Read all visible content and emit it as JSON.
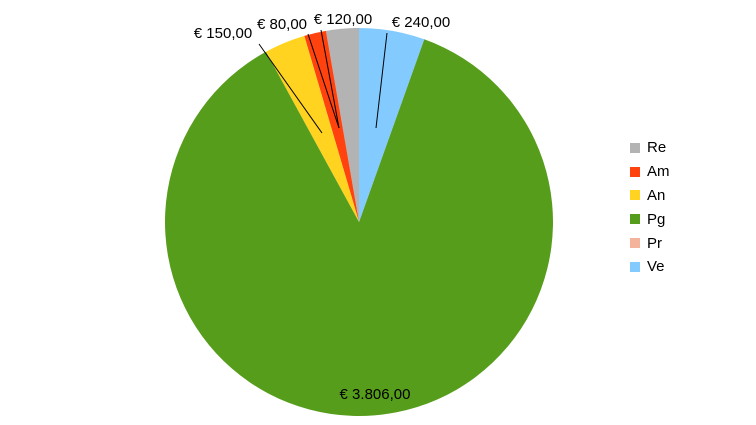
{
  "chart_data": {
    "type": "pie",
    "slices": [
      {
        "name": "Re",
        "value": 120,
        "label": "€ 120,00",
        "color": "#b3b3b3"
      },
      {
        "name": "Am",
        "value": 80,
        "label": "€ 80,00",
        "color": "#ff420e"
      },
      {
        "name": "An",
        "value": 150,
        "label": "€ 150,00",
        "color": "#ffd320"
      },
      {
        "name": "Pg",
        "value": 3806,
        "label": "€ 3.806,00",
        "color": "#579d1c"
      },
      {
        "name": "Pr",
        "value": 0,
        "label": "",
        "color": "#f4b49c"
      },
      {
        "name": "Ve",
        "value": 240,
        "label": "€ 240,00",
        "color": "#83caff"
      }
    ],
    "legend_position": "right"
  }
}
